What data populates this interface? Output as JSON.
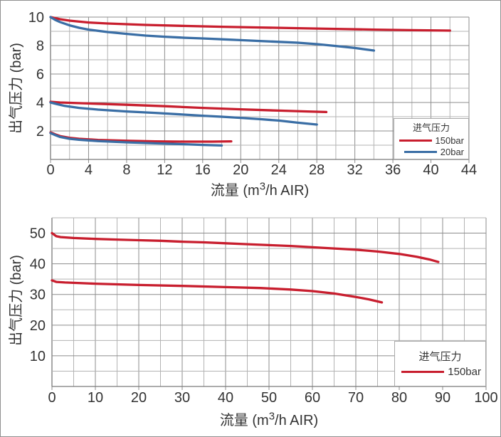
{
  "colors": {
    "series_red": "#c81e2e",
    "series_blue": "#3a6ea5",
    "grid_minor": "#b3b3b3",
    "grid_major": "#8c8c8c",
    "axis_line": "#7a7a7a",
    "text": "#333333"
  },
  "chart_data": [
    {
      "type": "line",
      "title": "",
      "xlabel_pre": "流量 (m",
      "xlabel_sup": "3",
      "xlabel_post": "/h AIR)",
      "ylabel": "出气压力 (bar)",
      "xlim": [
        0,
        44
      ],
      "ylim": [
        0,
        10
      ],
      "xticks": [
        0,
        4,
        8,
        12,
        16,
        20,
        24,
        28,
        32,
        36,
        40,
        44
      ],
      "yticks": [
        2,
        4,
        6,
        8,
        10
      ],
      "x_minor_step": 2,
      "y_minor_step": 1,
      "x_major_step": 4,
      "y_major_step": 2,
      "grid": true,
      "legend": {
        "title": "进气压力",
        "position": "bottom-right",
        "entries": [
          {
            "label": "150bar",
            "color": "#c81e2e"
          },
          {
            "label": "20bar",
            "color": "#3a6ea5"
          }
        ]
      },
      "series": [
        {
          "name": "150bar-outlet-10bar",
          "color": "#c81e2e",
          "points": [
            [
              0,
              10
            ],
            [
              1,
              9.85
            ],
            [
              2,
              9.75
            ],
            [
              4,
              9.62
            ],
            [
              6,
              9.55
            ],
            [
              8,
              9.5
            ],
            [
              10,
              9.45
            ],
            [
              14,
              9.38
            ],
            [
              18,
              9.32
            ],
            [
              22,
              9.27
            ],
            [
              26,
              9.22
            ],
            [
              30,
              9.17
            ],
            [
              34,
              9.12
            ],
            [
              38,
              9.08
            ],
            [
              42,
              9.05
            ]
          ]
        },
        {
          "name": "20bar-outlet-10bar",
          "color": "#3a6ea5",
          "points": [
            [
              0,
              10
            ],
            [
              0.5,
              9.8
            ],
            [
              1,
              9.65
            ],
            [
              2,
              9.42
            ],
            [
              3,
              9.25
            ],
            [
              4,
              9.12
            ],
            [
              6,
              8.95
            ],
            [
              8,
              8.82
            ],
            [
              10,
              8.7
            ],
            [
              12,
              8.62
            ],
            [
              14,
              8.55
            ],
            [
              16,
              8.5
            ],
            [
              18,
              8.44
            ],
            [
              20,
              8.38
            ],
            [
              22,
              8.32
            ],
            [
              24,
              8.26
            ],
            [
              26,
              8.2
            ],
            [
              28,
              8.1
            ],
            [
              30,
              7.97
            ],
            [
              32,
              7.83
            ],
            [
              34,
              7.65
            ]
          ]
        },
        {
          "name": "150bar-outlet-4bar",
          "color": "#c81e2e",
          "points": [
            [
              0,
              4.05
            ],
            [
              1,
              4.0
            ],
            [
              4,
              3.93
            ],
            [
              8,
              3.84
            ],
            [
              12,
              3.74
            ],
            [
              16,
              3.62
            ],
            [
              20,
              3.52
            ],
            [
              24,
              3.43
            ],
            [
              27,
              3.37
            ],
            [
              29,
              3.33
            ]
          ]
        },
        {
          "name": "20bar-outlet-4bar",
          "color": "#3a6ea5",
          "points": [
            [
              0,
              4.0
            ],
            [
              0.7,
              3.88
            ],
            [
              1.5,
              3.76
            ],
            [
              3,
              3.62
            ],
            [
              5,
              3.5
            ],
            [
              8,
              3.37
            ],
            [
              11,
              3.27
            ],
            [
              14,
              3.15
            ],
            [
              16,
              3.07
            ],
            [
              18,
              3.0
            ],
            [
              20,
              2.92
            ],
            [
              22,
              2.83
            ],
            [
              24,
              2.73
            ],
            [
              26,
              2.58
            ],
            [
              28,
              2.45
            ]
          ]
        },
        {
          "name": "150bar-outlet-2bar",
          "color": "#c81e2e",
          "points": [
            [
              0,
              1.9
            ],
            [
              0.5,
              1.76
            ],
            [
              1,
              1.64
            ],
            [
              2,
              1.52
            ],
            [
              3,
              1.45
            ],
            [
              5,
              1.37
            ],
            [
              8,
              1.31
            ],
            [
              11,
              1.27
            ],
            [
              14,
              1.25
            ],
            [
              17,
              1.25
            ],
            [
              19,
              1.27
            ]
          ]
        },
        {
          "name": "20bar-outlet-2bar",
          "color": "#3a6ea5",
          "points": [
            [
              0,
              1.85
            ],
            [
              0.5,
              1.71
            ],
            [
              1,
              1.58
            ],
            [
              2,
              1.45
            ],
            [
              3,
              1.38
            ],
            [
              5,
              1.29
            ],
            [
              8,
              1.2
            ],
            [
              11,
              1.13
            ],
            [
              14,
              1.07
            ],
            [
              16,
              1.02
            ],
            [
              18,
              0.98
            ]
          ]
        }
      ]
    },
    {
      "type": "line",
      "title": "",
      "xlabel_pre": "流量 (m",
      "xlabel_sup": "3",
      "xlabel_post": "/h AIR)",
      "ylabel": "出气压力 (bar)",
      "xlim": [
        0,
        100
      ],
      "ylim": [
        0,
        55
      ],
      "xticks": [
        0,
        10,
        20,
        30,
        40,
        50,
        60,
        70,
        80,
        90,
        100
      ],
      "yticks": [
        10,
        20,
        30,
        40,
        50
      ],
      "x_minor_step": 5,
      "y_minor_step": 5,
      "x_major_step": 10,
      "y_major_step": 10,
      "grid": true,
      "legend": {
        "title": "进气压力",
        "position": "bottom-right",
        "entries": [
          {
            "label": "150bar",
            "color": "#c81e2e"
          }
        ]
      },
      "series": [
        {
          "name": "150bar-outlet-50bar",
          "color": "#c81e2e",
          "points": [
            [
              0,
              50
            ],
            [
              1,
              49
            ],
            [
              2,
              48.7
            ],
            [
              5,
              48.4
            ],
            [
              10,
              48.1
            ],
            [
              15,
              47.9
            ],
            [
              20,
              47.7
            ],
            [
              25,
              47.5
            ],
            [
              30,
              47.2
            ],
            [
              35,
              47.0
            ],
            [
              40,
              46.7
            ],
            [
              45,
              46.4
            ],
            [
              50,
              46.1
            ],
            [
              55,
              45.8
            ],
            [
              60,
              45.4
            ],
            [
              65,
              45.0
            ],
            [
              70,
              44.6
            ],
            [
              75,
              44.0
            ],
            [
              80,
              43.2
            ],
            [
              84,
              42.3
            ],
            [
              87,
              41.4
            ],
            [
              89,
              40.6
            ]
          ]
        },
        {
          "name": "150bar-outlet-34bar",
          "color": "#c81e2e",
          "points": [
            [
              0,
              34.6
            ],
            [
              1,
              34.1
            ],
            [
              3,
              33.9
            ],
            [
              10,
              33.5
            ],
            [
              20,
              33.1
            ],
            [
              30,
              32.8
            ],
            [
              40,
              32.4
            ],
            [
              48,
              32.1
            ],
            [
              55,
              31.6
            ],
            [
              60,
              31.1
            ],
            [
              65,
              30.3
            ],
            [
              70,
              29.2
            ],
            [
              73,
              28.4
            ],
            [
              76,
              27.4
            ]
          ]
        }
      ]
    }
  ]
}
